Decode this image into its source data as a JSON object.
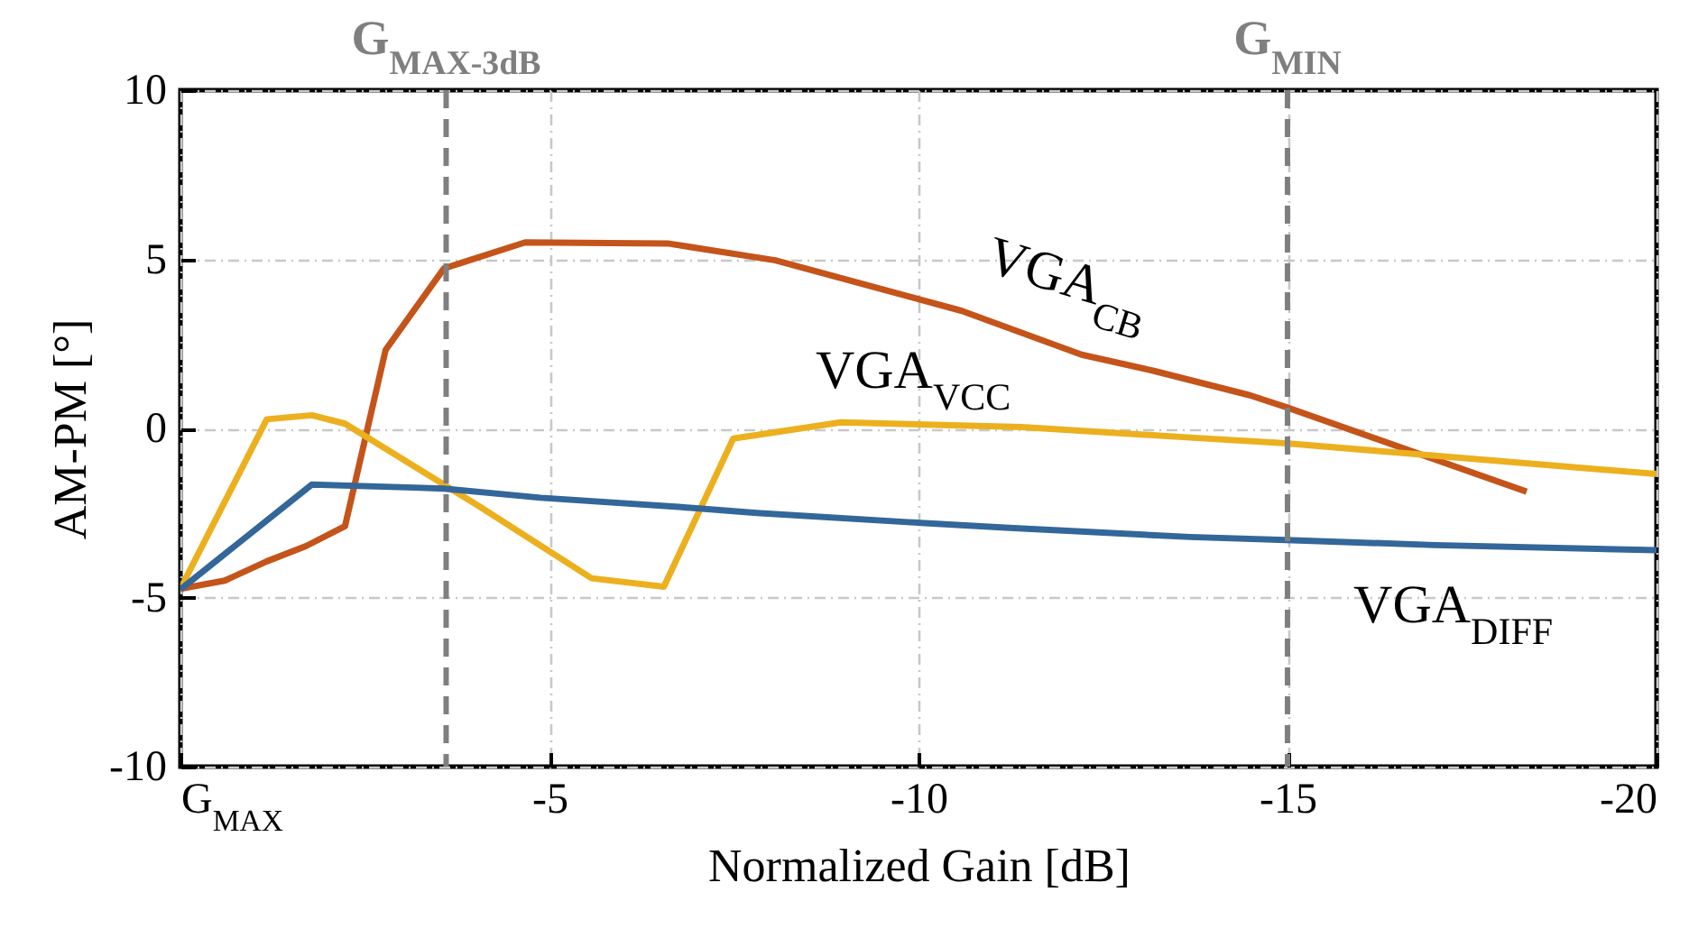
{
  "chart_data": {
    "type": "line",
    "xlabel": "Normalized Gain  [dB]",
    "ylabel": "AM-PM  [°]",
    "xlim": [
      0,
      -20
    ],
    "xticks": [
      {
        "value": 0,
        "label": "G$_{MAX}$"
      },
      -5,
      -10,
      -15,
      -20
    ],
    "ylim": [
      -10,
      10
    ],
    "yticks": [
      10,
      5,
      0,
      -5,
      -10
    ],
    "grid": true,
    "line_style": "solid",
    "series": [
      {
        "name": "VGA$_{CB}$",
        "color": "#c4541a",
        "x": [
          0,
          -0.6,
          -1.17,
          -1.7,
          -2.23,
          -2.78,
          -3.57,
          -4.67,
          -6.6,
          -8.06,
          -10.58,
          -12.21,
          -13.19,
          -14.49,
          -14.98,
          -18.24
        ],
        "values": [
          -4.74,
          -4.5,
          -3.93,
          -3.48,
          -2.89,
          2.32,
          4.73,
          5.5,
          5.47,
          4.97,
          3.48,
          2.18,
          1.7,
          0.98,
          0.63,
          -1.87
        ]
      },
      {
        "name": "VGA$_{VCC}$",
        "color": "#ecb01f",
        "x": [
          0,
          -1.17,
          -1.78,
          -2.23,
          -4.06,
          -5.57,
          -6.55,
          -7.49,
          -8.95,
          -11.4,
          -13.68,
          -14.98,
          -20
        ],
        "values": [
          -4.74,
          0.27,
          0.39,
          0.14,
          -2.32,
          -4.43,
          -4.68,
          -0.3,
          0.18,
          0.04,
          -0.27,
          -0.44,
          -1.35
        ]
      },
      {
        "name": "VGA$_{DIFF}$",
        "color": "#33679a",
        "x": [
          0,
          -1.78,
          -3.17,
          -3.57,
          -4.88,
          -6.75,
          -7.81,
          -9.85,
          -11.23,
          -13.68,
          -14.98,
          -17,
          -20
        ],
        "values": [
          -4.76,
          -1.66,
          -1.75,
          -1.78,
          -2.05,
          -2.32,
          -2.5,
          -2.77,
          -2.94,
          -3.21,
          -3.3,
          -3.45,
          -3.6
        ]
      }
    ],
    "ref_lines": [
      {
        "axis": "x",
        "value": -3.6,
        "label": "G$_{MAX-3dB}$",
        "color": "#7f7f7f",
        "line_style": "dashed"
      },
      {
        "axis": "x",
        "value": -15,
        "label": "G$_{MIN}$",
        "color": "#7f7f7f",
        "line_style": "dashed"
      }
    ]
  }
}
